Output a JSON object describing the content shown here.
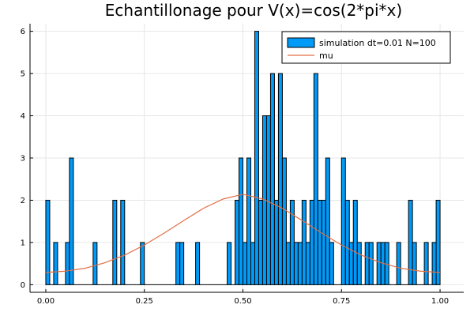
{
  "chart_data": {
    "type": "bar",
    "title": "Echantillonage pour V(x)=cos(2*pi*x)",
    "xlabel": "",
    "ylabel": "",
    "xlim": [
      -0.04,
      1.06
    ],
    "ylim": [
      -0.18,
      6.18
    ],
    "bin_width": 0.01,
    "grid": true,
    "legend_position": "top-right",
    "x_ticks": [
      {
        "value": 0,
        "label": "0.00"
      },
      {
        "value": 0.25,
        "label": "0.25"
      },
      {
        "value": 0.5,
        "label": "0.50"
      },
      {
        "value": 0.75,
        "label": "0.75"
      },
      {
        "value": 1,
        "label": "1.00"
      }
    ],
    "y_ticks": [
      {
        "value": 0,
        "label": "0"
      },
      {
        "value": 1,
        "label": "1"
      },
      {
        "value": 2,
        "label": "2"
      },
      {
        "value": 3,
        "label": "3"
      },
      {
        "value": 4,
        "label": "4"
      },
      {
        "value": 5,
        "label": "5"
      },
      {
        "value": 6,
        "label": "6"
      }
    ],
    "series": [
      {
        "name": "simulation dt=0.01 N=100",
        "type": "bar",
        "color": "#009af9",
        "bins": [
          0.0,
          0.01,
          0.02,
          0.03,
          0.04,
          0.05,
          0.06,
          0.07,
          0.08,
          0.09,
          0.1,
          0.11,
          0.12,
          0.13,
          0.14,
          0.15,
          0.16,
          0.17,
          0.18,
          0.19,
          0.2,
          0.21,
          0.22,
          0.23,
          0.24,
          0.25,
          0.26,
          0.27,
          0.28,
          0.29,
          0.3,
          0.31,
          0.32,
          0.33,
          0.34,
          0.35,
          0.36,
          0.37,
          0.38,
          0.39,
          0.4,
          0.41,
          0.42,
          0.43,
          0.44,
          0.45,
          0.46,
          0.47,
          0.48,
          0.49,
          0.5,
          0.51,
          0.52,
          0.53,
          0.54,
          0.55,
          0.56,
          0.57,
          0.58,
          0.59,
          0.6,
          0.61,
          0.62,
          0.63,
          0.64,
          0.65,
          0.66,
          0.67,
          0.68,
          0.69,
          0.7,
          0.71,
          0.72,
          0.73,
          0.74,
          0.75,
          0.76,
          0.77,
          0.78,
          0.79,
          0.8,
          0.81,
          0.82,
          0.83,
          0.84,
          0.85,
          0.86,
          0.87,
          0.88,
          0.89,
          0.9,
          0.91,
          0.92,
          0.93,
          0.94,
          0.95,
          0.96,
          0.97,
          0.98,
          0.99
        ],
        "values": [
          2,
          0,
          1,
          0,
          0,
          1,
          3,
          0,
          0,
          0,
          0,
          0,
          1,
          0,
          0,
          0,
          0,
          2,
          0,
          2,
          0,
          0,
          0,
          0,
          1,
          0,
          0,
          0,
          0,
          0,
          0,
          0,
          0,
          1,
          1,
          0,
          0,
          0,
          1,
          0,
          0,
          0,
          0,
          0,
          0,
          0,
          1,
          0,
          2,
          3,
          1,
          3,
          1,
          6,
          2,
          4,
          4,
          5,
          2,
          5,
          3,
          1,
          2,
          1,
          1,
          2,
          1,
          2,
          5,
          2,
          2,
          3,
          1,
          0,
          0,
          3,
          2,
          1,
          2,
          1,
          0,
          1,
          1,
          0,
          1,
          1,
          1,
          0,
          0,
          1,
          0,
          0,
          2,
          1,
          0,
          0,
          1,
          0,
          1,
          2
        ]
      },
      {
        "name": "mu",
        "type": "line",
        "color": "#e26f46",
        "formula_note": "",
        "x": [
          0,
          0.05,
          0.1,
          0.15,
          0.2,
          0.25,
          0.3,
          0.35,
          0.4,
          0.45,
          0.5,
          0.55,
          0.6,
          0.65,
          0.7,
          0.75,
          0.8,
          0.85,
          0.9,
          0.95,
          1.0
        ],
        "y": [
          0.29,
          0.32,
          0.39,
          0.52,
          0.7,
          0.94,
          1.22,
          1.52,
          1.81,
          2.03,
          2.14,
          2.03,
          1.81,
          1.52,
          1.22,
          0.94,
          0.7,
          0.52,
          0.39,
          0.32,
          0.29
        ]
      }
    ]
  }
}
